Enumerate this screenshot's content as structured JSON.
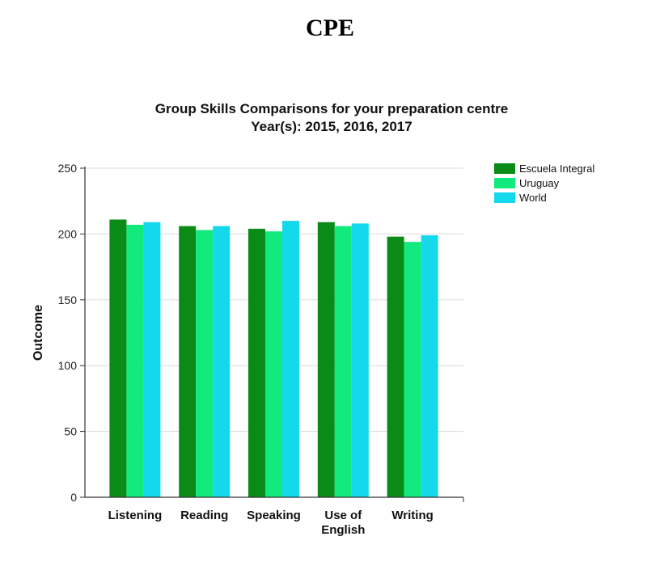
{
  "page_title": "CPE",
  "chart_data": {
    "type": "bar",
    "title_lines": [
      "Group Skills Comparisons for your preparation centre",
      "Year(s): 2015, 2016, 2017"
    ],
    "xlabel": "",
    "ylabel": "Outcome",
    "categories": [
      [
        "Listening"
      ],
      [
        "Reading"
      ],
      [
        "Speaking"
      ],
      [
        "Use of",
        "English"
      ],
      [
        "Writing"
      ]
    ],
    "ylim": [
      0,
      250
    ],
    "yticks": [
      0,
      50,
      100,
      150,
      200,
      250
    ],
    "grid": true,
    "legend_position": "top-right",
    "series": [
      {
        "name": "Escuela Integral",
        "color": "#0a8a16",
        "values": [
          211,
          206,
          204,
          209,
          198
        ]
      },
      {
        "name": "Uruguay",
        "color": "#12ea7e",
        "values": [
          207,
          203,
          202,
          206,
          194
        ]
      },
      {
        "name": "World",
        "color": "#14d8ec",
        "values": [
          209,
          206,
          210,
          208,
          199
        ]
      }
    ]
  }
}
